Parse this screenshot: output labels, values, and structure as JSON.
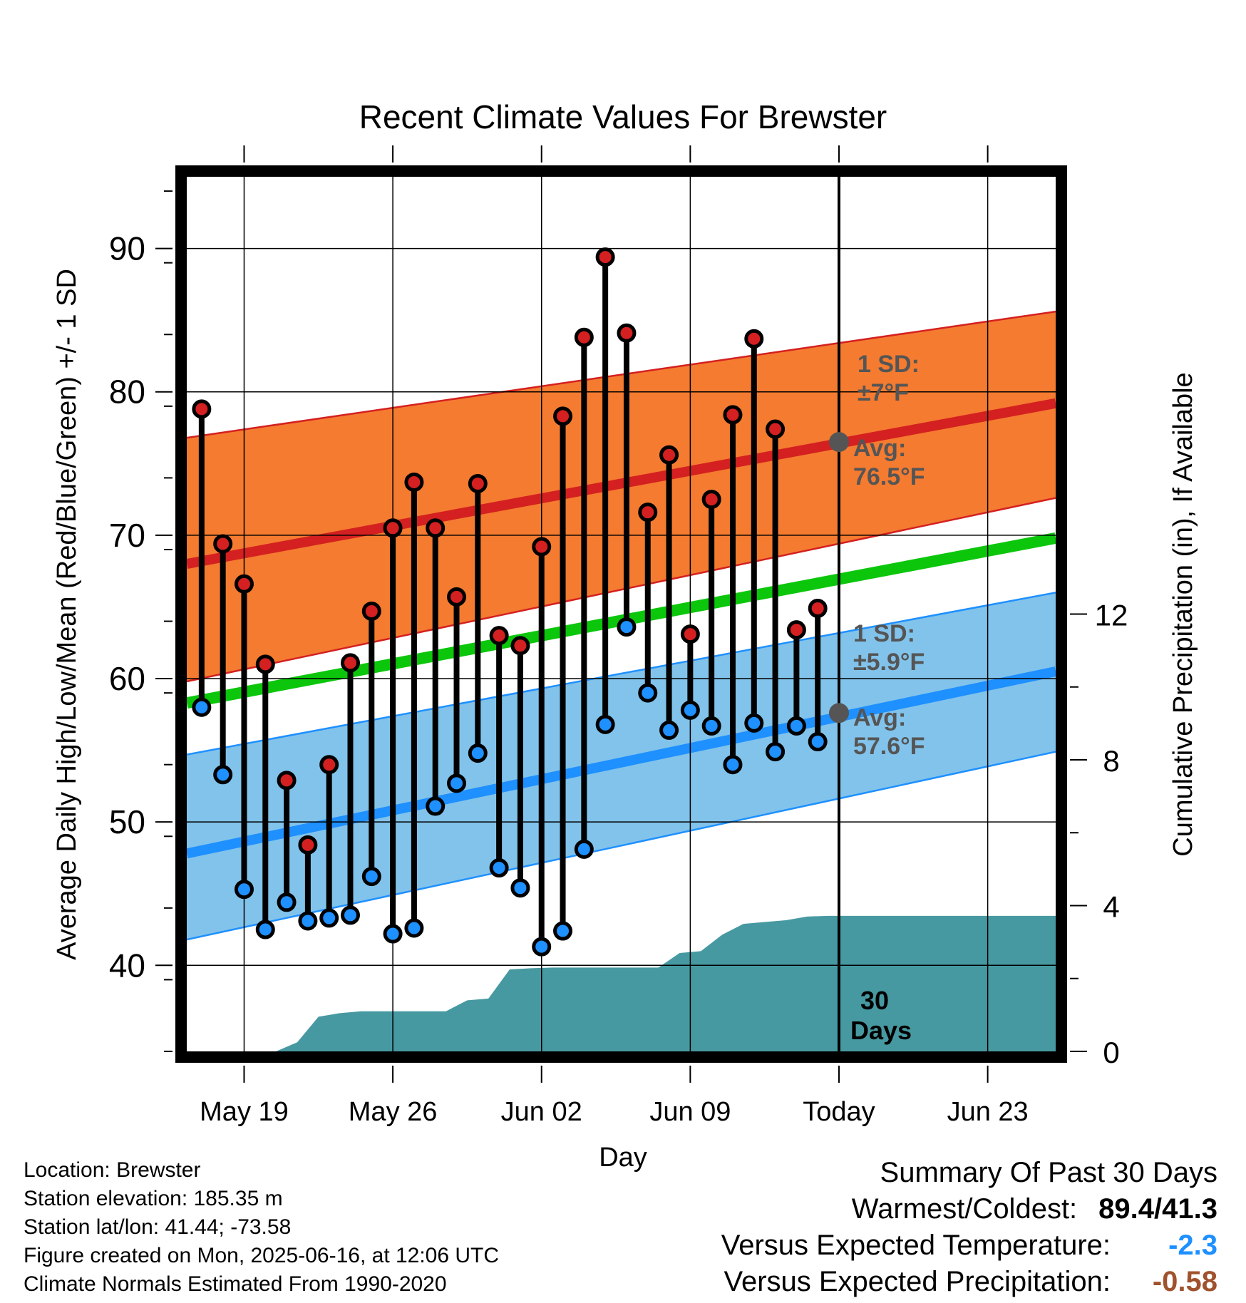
{
  "chart_data": {
    "type": "line",
    "title": "Recent Climate Values For Brewster",
    "xlabel": "Day",
    "ylabel": "Average Daily High/Low/Mean (Red/Blue/Green) +/- 1 SD",
    "y2label": "Cumulative Precipitation (in), If Available",
    "x_ticks": [
      "May 19",
      "May 26",
      "Jun 02",
      "Jun 09",
      "Today",
      "Jun 23"
    ],
    "x_tick_day_index": [
      3,
      10,
      17,
      24,
      31,
      38
    ],
    "x_range": [
      0.3,
      41.2
    ],
    "ylim": [
      34,
      95
    ],
    "y_ticks": [
      40,
      50,
      60,
      70,
      80,
      90
    ],
    "y2lim": [
      0,
      24
    ],
    "y2_ticks": [
      0,
      4,
      8,
      12
    ],
    "today_index": 31,
    "today_caption": [
      "30",
      "Days"
    ],
    "normal_high": {
      "start": 68.0,
      "end": 79.2,
      "sd_label": [
        "1 SD:",
        "±7°F"
      ],
      "avg_label": [
        "Avg:",
        "76.5°F"
      ],
      "today_value": 76.5
    },
    "normal_low": {
      "start": 47.8,
      "end": 60.5,
      "sd_label": [
        "1 SD:",
        "±5.9°F"
      ],
      "avg_label": [
        "Avg:",
        "57.6°F"
      ],
      "today_value": 57.6
    },
    "normal_mean": {
      "start": 58.3,
      "end": 69.8
    },
    "high_sd_band": {
      "upper_start": 76.8,
      "upper_end": 85.6,
      "lower_start": 59.8,
      "lower_end": 72.6
    },
    "low_sd_band": {
      "upper_start": 54.7,
      "upper_end": 66.0,
      "lower_start": 41.8,
      "lower_end": 54.9
    },
    "days": [
      1,
      2,
      3,
      4,
      5,
      6,
      7,
      8,
      9,
      10,
      11,
      12,
      13,
      14,
      15,
      16,
      17,
      18,
      19,
      20,
      21,
      22,
      23,
      24,
      25,
      26,
      27,
      28,
      29,
      30
    ],
    "highs": [
      78.8,
      69.4,
      66.6,
      61.0,
      52.9,
      48.4,
      54.0,
      61.1,
      64.7,
      70.5,
      73.7,
      70.5,
      65.7,
      73.6,
      63.0,
      62.3,
      69.2,
      78.3,
      83.8,
      89.4,
      84.1,
      71.6,
      75.6,
      63.1,
      72.5,
      78.4,
      83.7,
      77.4,
      63.4,
      64.9
    ],
    "lows": [
      58.0,
      53.3,
      45.3,
      42.5,
      44.4,
      43.1,
      43.3,
      43.5,
      46.2,
      42.2,
      42.6,
      51.1,
      52.7,
      54.8,
      46.8,
      45.4,
      41.3,
      42.4,
      48.1,
      56.8,
      63.6,
      59.0,
      56.4,
      57.8,
      56.7,
      54.0,
      56.9,
      54.9,
      56.7,
      55.6
    ],
    "precip_x": [
      0.3,
      4.5,
      5.5,
      6.5,
      7.5,
      8.5,
      9.5,
      10.5,
      11.5,
      12.5,
      13.5,
      14.5,
      15.5,
      16.5,
      17.5,
      18.5,
      19.5,
      20.5,
      21.5,
      22.5,
      23.5,
      24.5,
      25.5,
      26.5,
      27.5,
      28.5,
      29.5,
      30.5,
      31.5,
      41.2
    ],
    "precip_cum": [
      0.0,
      0.0,
      0.25,
      0.95,
      1.05,
      1.1,
      1.1,
      1.1,
      1.1,
      1.1,
      1.4,
      1.45,
      2.25,
      2.28,
      2.3,
      2.3,
      2.3,
      2.3,
      2.3,
      2.3,
      2.7,
      2.75,
      3.2,
      3.5,
      3.55,
      3.6,
      3.7,
      3.72,
      3.72,
      3.72
    ],
    "colors": {
      "high_band": "#f47b30",
      "high_line": "#d42020",
      "low_band": "#82c3eb",
      "low_line": "#1e90ff",
      "mean_line": "#0cc60c",
      "precip": "#4799a1",
      "high_dot": "#d42020",
      "low_dot": "#1e90ff",
      "annotation": "#555555"
    }
  },
  "meta": {
    "location": "Location: Brewster",
    "elevation": "Station elevation: 185.35 m",
    "latlon": "Station lat/lon: 41.44; -73.58",
    "created": "Figure created on Mon, 2025-06-16, at 12:06 UTC",
    "normals": "Climate Normals Estimated From 1990-2020"
  },
  "summary": {
    "heading": "Summary Of Past 30 Days",
    "warmest_coldest_label": "Warmest/Coldest:",
    "warmest_coldest_value": "89.4/41.3",
    "temp_label": "Versus Expected Temperature:",
    "temp_value": "-2.3",
    "temp_color": "#1e90ff",
    "precip_label": "Versus Expected Precipitation:",
    "precip_value": "-0.58",
    "precip_color": "#a0522d"
  }
}
